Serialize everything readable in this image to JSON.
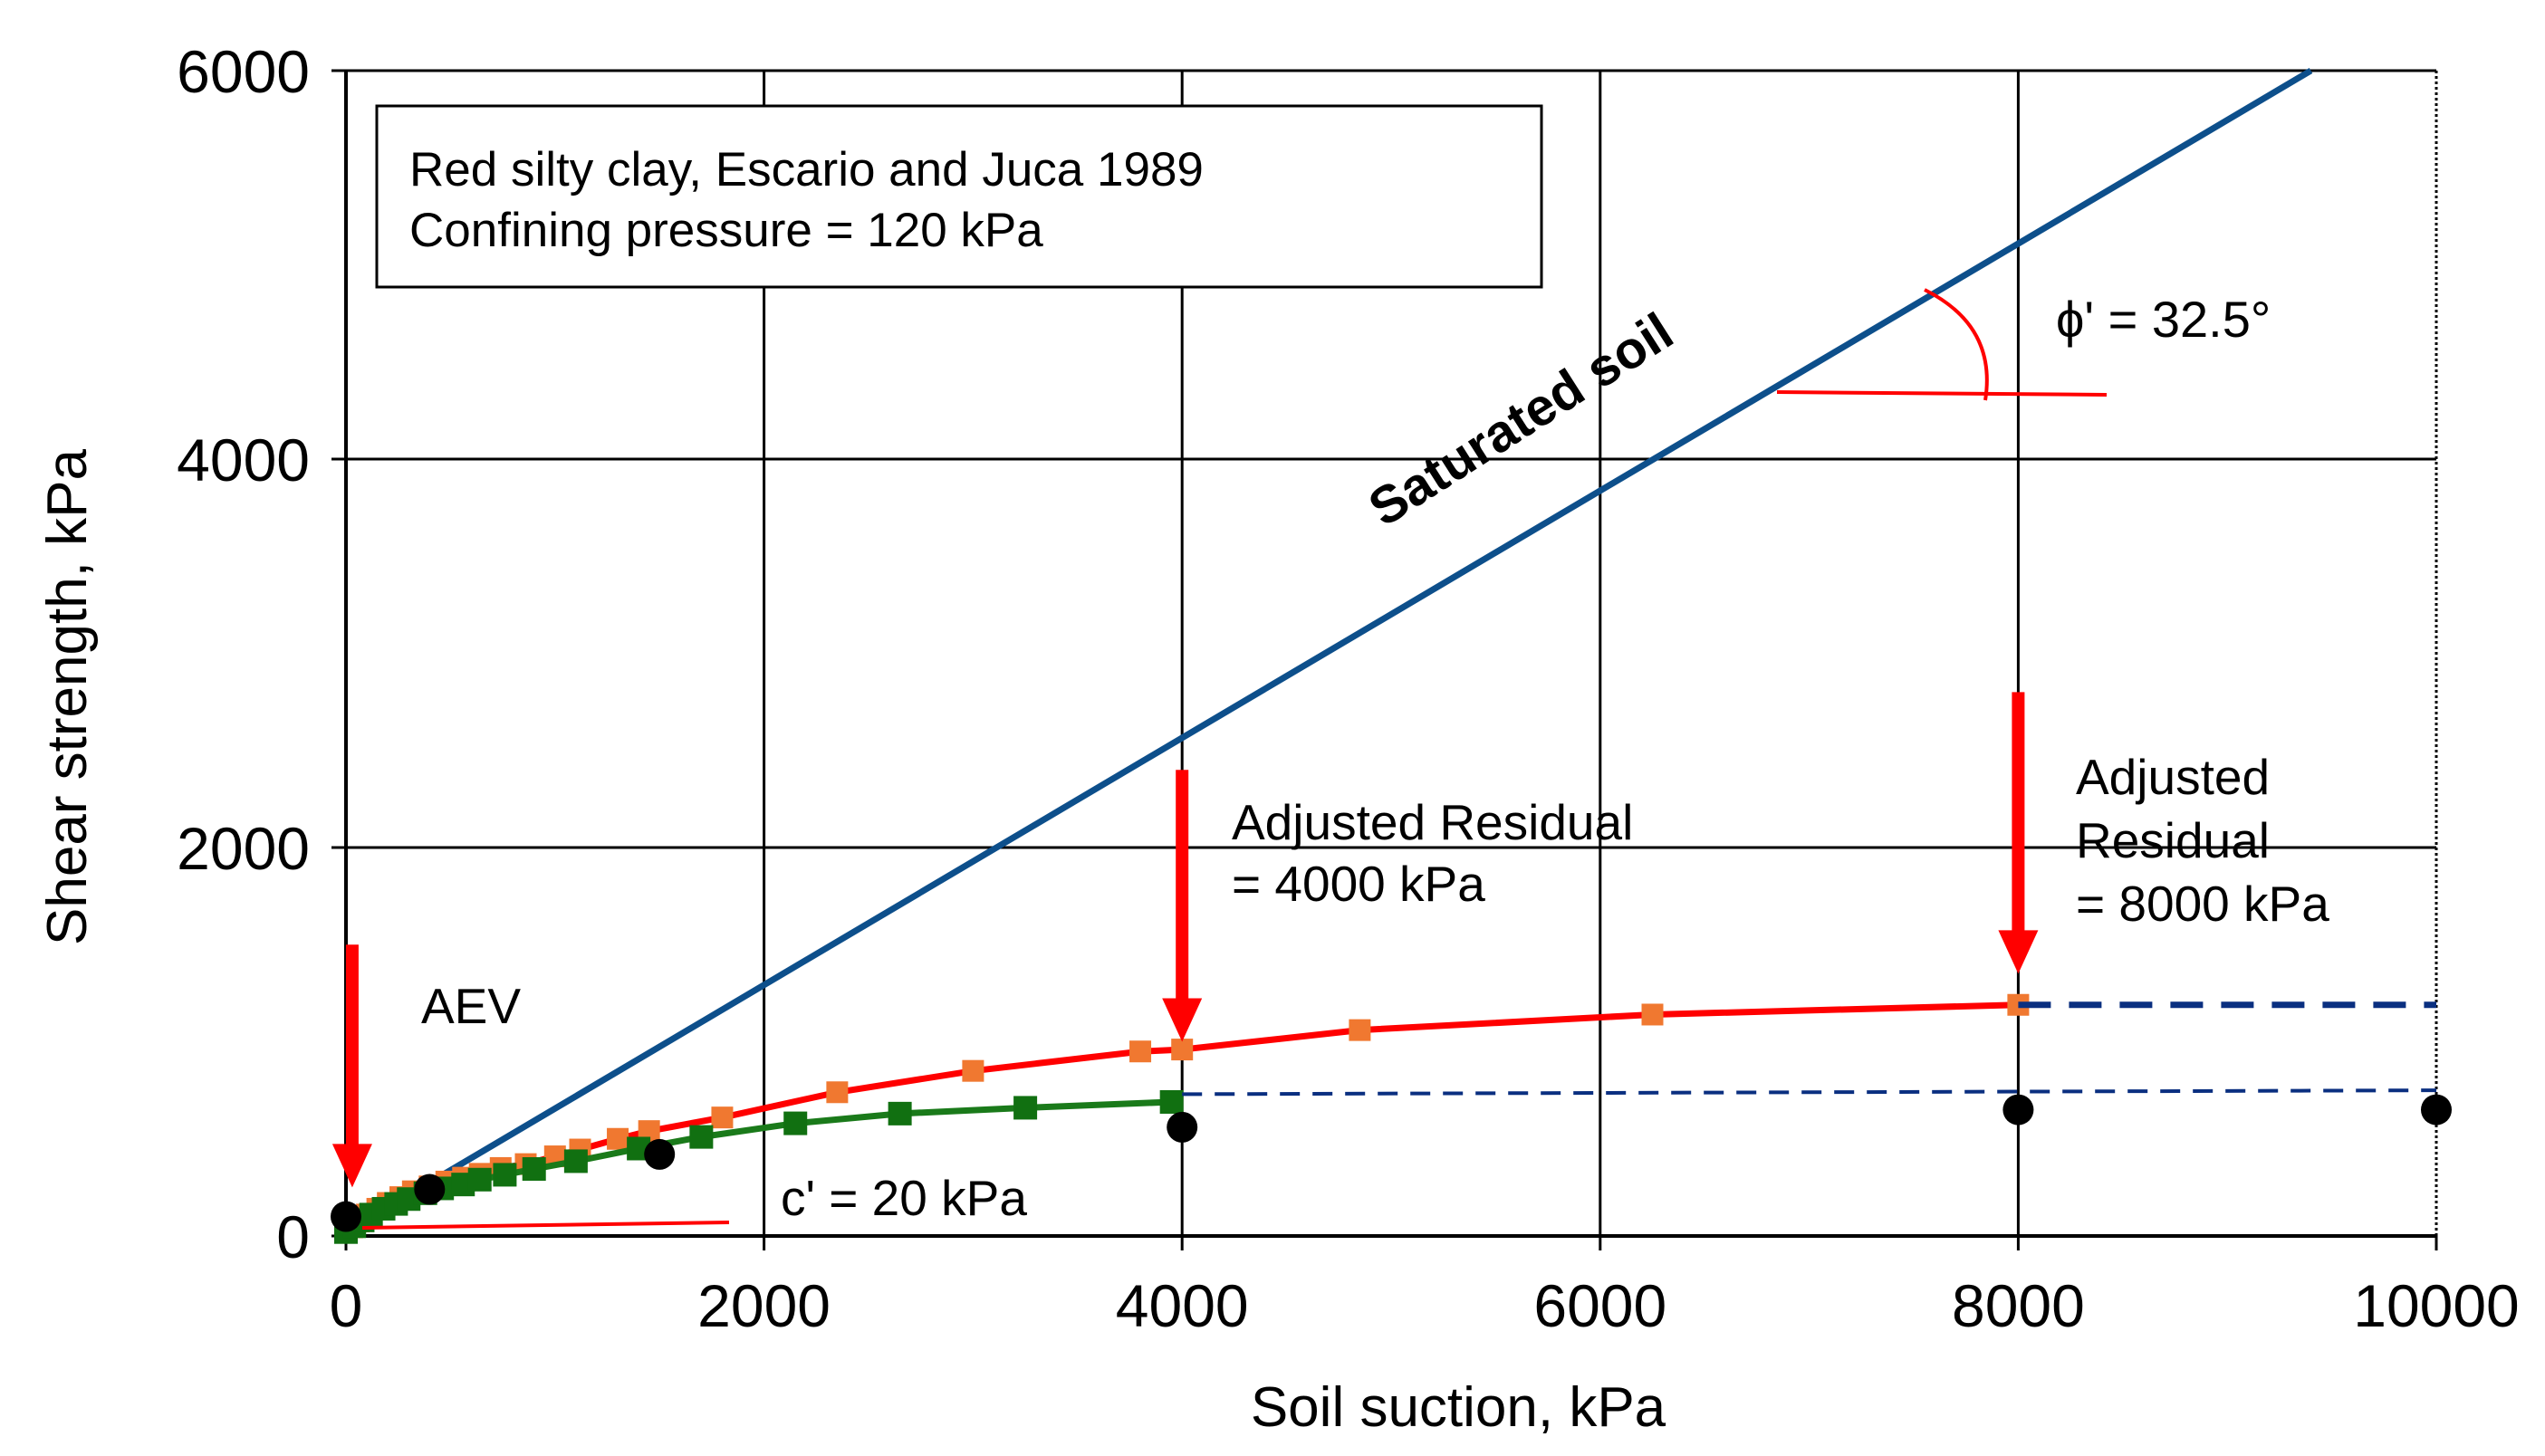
{
  "chart_data": {
    "type": "line",
    "xlabel": "Soil suction, kPa",
    "ylabel": "Shear strength, kPa",
    "xlim": [
      0,
      10000
    ],
    "ylim": [
      0,
      6000
    ],
    "x_ticks": [
      "0",
      "2000",
      "4000",
      "6000",
      "8000",
      "10000"
    ],
    "y_ticks": [
      "0",
      "2000",
      "4000",
      "6000"
    ],
    "grid": true,
    "info_box": [
      "Red silty clay, Escario and Juca 1989",
      "Confining  pressure = 120 kPa"
    ],
    "series": [
      {
        "name": "Saturated soil",
        "kind": "line",
        "color": "#0d4f8b",
        "x": [
          0,
          9400
        ],
        "y": [
          20,
          6000
        ]
      },
      {
        "kind": "line-markers",
        "color": "#ff0000",
        "marker_color": "#f07830",
        "x": [
          0,
          30,
          60,
          100,
          150,
          200,
          260,
          320,
          400,
          480,
          560,
          640,
          740,
          860,
          1000,
          1120,
          1300,
          1450,
          1800,
          2350,
          3000,
          3800,
          4000,
          4850,
          6250,
          8000
        ],
        "y": [
          20,
          45,
          75,
          110,
          140,
          170,
          200,
          230,
          255,
          280,
          300,
          320,
          350,
          370,
          410,
          445,
          500,
          540,
          610,
          740,
          850,
          950,
          960,
          1060,
          1140,
          1190
        ]
      },
      {
        "kind": "line-markers",
        "color": "#1a7a1a",
        "marker_color": "#117011",
        "x": [
          0,
          40,
          80,
          120,
          180,
          240,
          300,
          380,
          460,
          560,
          640,
          760,
          900,
          1100,
          1400,
          1700,
          2150,
          2650,
          3250,
          3950
        ],
        "y": [
          20,
          50,
          80,
          110,
          140,
          165,
          190,
          220,
          245,
          265,
          290,
          315,
          345,
          385,
          450,
          510,
          580,
          630,
          660,
          690
        ]
      },
      {
        "kind": "points",
        "color": "#000000",
        "x": [
          0,
          400,
          1500,
          4000,
          8000,
          10000
        ],
        "y": [
          100,
          240,
          420,
          560,
          650,
          650
        ]
      },
      {
        "kind": "dashed",
        "color": "#0a2f80",
        "x": [
          4000,
          10000
        ],
        "y": [
          730,
          750
        ]
      },
      {
        "kind": "dashed-thick",
        "color": "#0a2f80",
        "x": [
          8000,
          10000
        ],
        "y": [
          1190,
          1190
        ]
      }
    ],
    "annotations": {
      "saturated": "Saturated soil",
      "phi": "ϕ' = 32.5°",
      "aev": "AEV",
      "c": "c' = 20 kPa",
      "res4000_line1": "Adjusted Residual",
      "res4000_line2": "= 4000 kPa",
      "res8000_line1": "Adjusted",
      "res8000_line2": "Residual",
      "res8000_line3": "= 8000 kPa"
    },
    "arrows": [
      {
        "x": 30,
        "y_from": 1500,
        "y_to": 250
      },
      {
        "x": 4000,
        "y_from": 2400,
        "y_to": 1000
      },
      {
        "x": 8000,
        "y_from": 2800,
        "y_to": 1350
      }
    ],
    "red_marker_color": "#ff0000"
  }
}
